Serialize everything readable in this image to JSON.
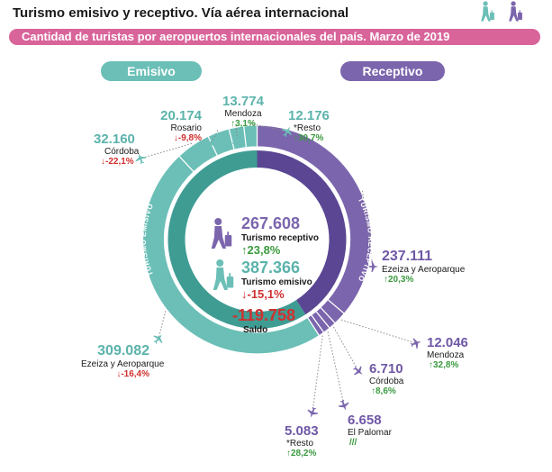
{
  "header": {
    "title": "Turismo emisivo y receptivo. Vía aérea internacional",
    "subtitle": "Cantidad de turistas por aeropuertos internacionales del país. Marzo de 2019"
  },
  "legend": {
    "emisivo": "Emisivo",
    "receptivo": "Receptivo"
  },
  "ring_labels": {
    "receptivo": "TURISMO RECEPTIVO",
    "emisivo": "TURISMO EMISIVO"
  },
  "colors": {
    "emisivo": "#6bbfb7",
    "emisivo_dark": "#3f9c93",
    "receptivo": "#7b65ad",
    "receptivo_dark": "#5a4693",
    "saldo": "#d0302f",
    "up": "#3a9a3f",
    "down": "#d0302f"
  },
  "icons": {
    "plane": "airplane-icon",
    "walker": "traveler-with-suitcase-icon"
  },
  "center": {
    "receptivo": {
      "value": "267.608",
      "label": "Turismo receptivo",
      "change": "↑23,8%"
    },
    "emisivo": {
      "value": "387.366",
      "label": "Turismo emisivo",
      "change": "↓-15,1%"
    },
    "saldo": {
      "value": "-119.758",
      "label": "Saldo"
    }
  },
  "chart_data": {
    "type": "pie",
    "title": "Turismo emisivo y receptivo. Vía aérea internacional",
    "subtitle": "Cantidad de turistas por aeropuertos internacionales del país. Marzo de 2019",
    "series": [
      {
        "name": "Emisivo",
        "total": 387366,
        "slices": [
          {
            "label": "Ezeiza y Aeroparque",
            "value": 309082,
            "value_text": "309.082",
            "change": "↓-16,4%",
            "dir": "down"
          },
          {
            "label": "Córdoba",
            "value": 32160,
            "value_text": "32.160",
            "change": "↓-22,1%",
            "dir": "down"
          },
          {
            "label": "Rosario",
            "value": 20174,
            "value_text": "20.174",
            "change": "↓-9,8%",
            "dir": "down"
          },
          {
            "label": "Mendoza",
            "value": 13774,
            "value_text": "13.774",
            "change": "↑3,1%",
            "dir": "up"
          },
          {
            "label": "*Resto",
            "value": 12176,
            "value_text": "12.176",
            "change": "↑30,7%",
            "dir": "up"
          }
        ]
      },
      {
        "name": "Receptivo",
        "total": 267608,
        "slices": [
          {
            "label": "Ezeiza y Aeroparque",
            "value": 237111,
            "value_text": "237.111",
            "change": "↑20,3%",
            "dir": "up"
          },
          {
            "label": "Mendoza",
            "value": 12046,
            "value_text": "12.046",
            "change": "↑32,8%",
            "dir": "up"
          },
          {
            "label": "Córdoba",
            "value": 6710,
            "value_text": "6.710",
            "change": "↑8,6%",
            "dir": "up"
          },
          {
            "label": "El Palomar",
            "value": 6658,
            "value_text": "6.658",
            "change": "///",
            "dir": "none"
          },
          {
            "label": "*Resto",
            "value": 5083,
            "value_text": "5.083",
            "change": "↑28,2%",
            "dir": "up"
          }
        ]
      }
    ]
  }
}
